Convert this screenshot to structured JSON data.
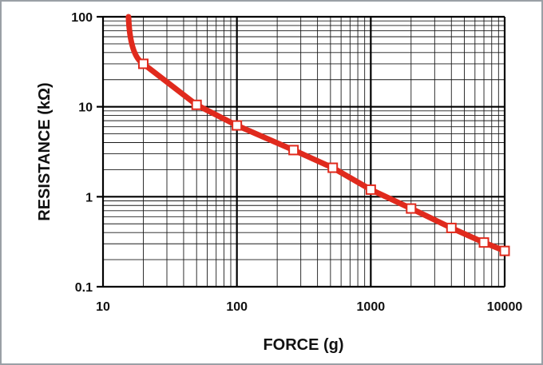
{
  "chart_data": {
    "type": "line",
    "title": "",
    "xlabel": "FORCE (g)",
    "ylabel": "RESISTANCE (kΩ)",
    "x_scale": "log",
    "y_scale": "log",
    "xlim": [
      10,
      10000
    ],
    "ylim": [
      0.1,
      100
    ],
    "x_ticks": [
      "10",
      "100",
      "1000",
      "10000"
    ],
    "y_ticks": [
      "100",
      "10",
      "1",
      "0.1"
    ],
    "grid": true,
    "legend": "none",
    "series": [
      {
        "color": "#e02a1d",
        "curve_start": {
          "x": 15.5,
          "y": 100
        },
        "x": [
          20,
          50,
          100,
          265,
          520,
          1000,
          2000,
          4000,
          7000,
          10000
        ],
        "y": [
          30,
          10.5,
          6.2,
          3.3,
          2.1,
          1.2,
          0.74,
          0.45,
          0.31,
          0.25
        ]
      }
    ]
  }
}
